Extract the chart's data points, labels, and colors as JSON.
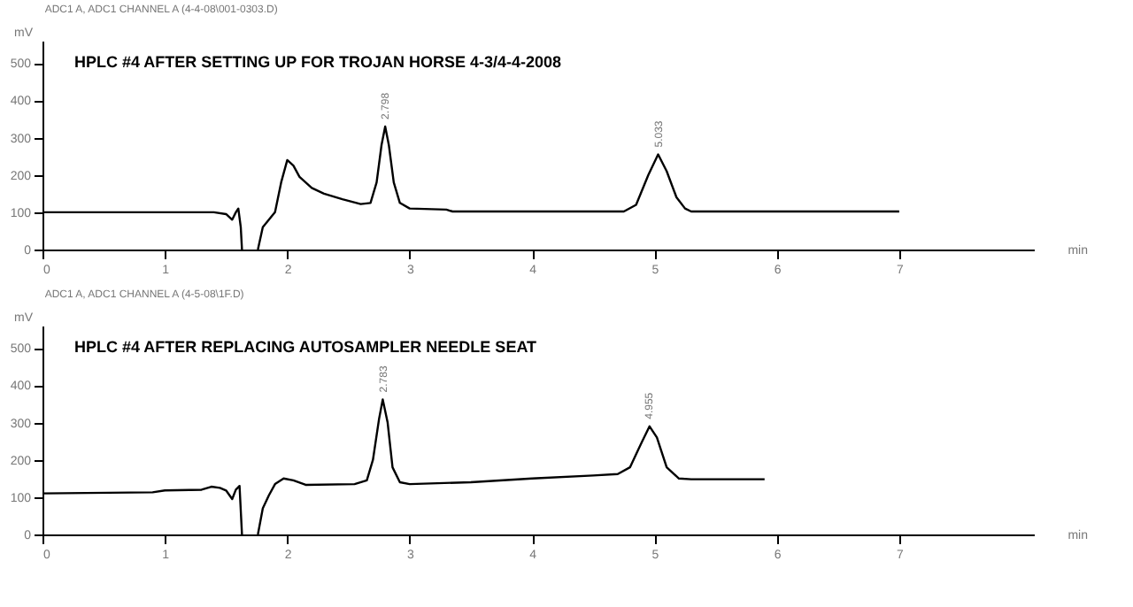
{
  "chart_data": [
    {
      "type": "line",
      "title": "HPLC #4 AFTER SETTING UP FOR TROJAN HORSE 4-3/4-4-2008",
      "xlabel": "min",
      "ylabel": "mV",
      "annotations": [
        "ADC1 A, ADC1 CHANNEL A (4-4-08\\001-0303.D)",
        {
          "text": "2.798",
          "x": 2.798,
          "y": 330
        },
        {
          "text": "5.033",
          "x": 5.033,
          "y": 255
        }
      ],
      "x": [
        0,
        1.4,
        1.5,
        1.55,
        1.58,
        1.6,
        1.62,
        1.63,
        1.7,
        1.76,
        1.8,
        1.85,
        1.9,
        1.95,
        2.0,
        2.05,
        2.1,
        2.2,
        2.3,
        2.45,
        2.6,
        2.68,
        2.73,
        2.77,
        2.8,
        2.83,
        2.87,
        2.92,
        3.0,
        3.3,
        3.35,
        4.75,
        4.85,
        4.95,
        5.03,
        5.1,
        5.18,
        5.25,
        5.3,
        7.0
      ],
      "series": [
        {
          "color": "#000000",
          "values": [
            100,
            100,
            95,
            80,
            100,
            110,
            60,
            0,
            null,
            0,
            60,
            80,
            100,
            180,
            240,
            225,
            195,
            165,
            150,
            135,
            122,
            125,
            180,
            280,
            330,
            280,
            180,
            125,
            110,
            107,
            102,
            102,
            120,
            200,
            255,
            210,
            140,
            110,
            102,
            102
          ]
        }
      ],
      "xlim": [
        0,
        8.1
      ],
      "xticks": [
        0,
        1,
        2,
        3,
        4,
        5,
        6,
        7
      ],
      "ylim": [
        0,
        560
      ],
      "yticks": [
        0,
        100,
        200,
        300,
        400,
        500
      ],
      "grid": false,
      "marker": "none",
      "line_style": "solid"
    },
    {
      "type": "line",
      "title": "HPLC #4 AFTER REPLACING AUTOSAMPLER NEEDLE SEAT",
      "xlabel": "min",
      "ylabel": "mV",
      "annotations": [
        "ADC1 A, ADC1 CHANNEL A (4-5-08\\1F.D)",
        {
          "text": "2.783",
          "x": 2.783,
          "y": 362
        },
        {
          "text": "4.955",
          "x": 4.955,
          "y": 290
        }
      ],
      "x": [
        0,
        0.9,
        1.0,
        1.3,
        1.38,
        1.45,
        1.5,
        1.55,
        1.58,
        1.61,
        1.63,
        1.7,
        1.76,
        1.8,
        1.85,
        1.9,
        1.97,
        2.05,
        2.15,
        2.55,
        2.65,
        2.7,
        2.75,
        2.78,
        2.82,
        2.86,
        2.92,
        3.0,
        3.5,
        4.0,
        4.5,
        4.7,
        4.8,
        4.9,
        4.96,
        5.02,
        5.1,
        5.2,
        5.3,
        5.9
      ],
      "series": [
        {
          "color": "#000000",
          "values": [
            110,
            113,
            118,
            120,
            128,
            125,
            118,
            95,
            120,
            130,
            0,
            null,
            0,
            70,
            105,
            135,
            150,
            145,
            133,
            135,
            145,
            200,
            310,
            362,
            300,
            180,
            140,
            135,
            140,
            150,
            158,
            162,
            180,
            250,
            290,
            260,
            180,
            150,
            148,
            148
          ]
        }
      ],
      "xlim": [
        0,
        8.1
      ],
      "xticks": [
        0,
        1,
        2,
        3,
        4,
        5,
        6,
        7
      ],
      "ylim": [
        0,
        560
      ],
      "yticks": [
        0,
        100,
        200,
        300,
        400,
        500
      ],
      "grid": false,
      "marker": "none",
      "line_style": "solid"
    }
  ]
}
